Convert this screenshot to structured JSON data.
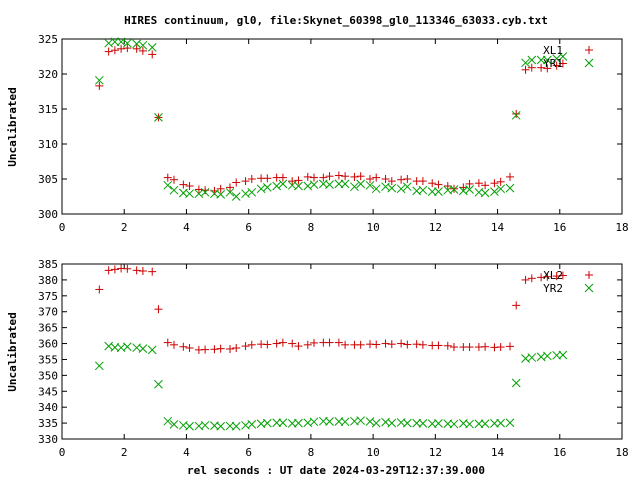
{
  "title": "HIRES continuum, gl0, file:Skynet_60398_gl0_113346_63033.cyb.txt",
  "colors": {
    "plus": "#cc0000",
    "cross": "#00a000"
  },
  "chart_data": [
    {
      "type": "scatter",
      "ylabel": "Uncalibrated",
      "xlabel": "",
      "xlim": [
        0,
        18
      ],
      "ylim": [
        300,
        325
      ],
      "x_ticks": [
        0,
        2,
        4,
        6,
        8,
        10,
        12,
        14,
        16,
        18
      ],
      "y_ticks": [
        300,
        305,
        310,
        315,
        320,
        325
      ],
      "grid": false,
      "legend": "top-right",
      "series": [
        {
          "name": "XL1",
          "marker": "plus",
          "x": [
            1.2,
            1.5,
            1.7,
            1.9,
            2.1,
            2.4,
            2.6,
            2.9,
            3.1,
            3.4,
            3.6,
            3.9,
            4.1,
            4.4,
            4.6,
            4.9,
            5.1,
            5.4,
            5.6,
            5.9,
            6.1,
            6.4,
            6.6,
            6.9,
            7.1,
            7.4,
            7.6,
            7.9,
            8.1,
            8.4,
            8.6,
            8.9,
            9.1,
            9.4,
            9.6,
            9.9,
            10.1,
            10.4,
            10.6,
            10.9,
            11.1,
            11.4,
            11.6,
            11.9,
            12.1,
            12.4,
            12.6,
            12.9,
            13.1,
            13.4,
            13.6,
            13.9,
            14.1,
            14.4,
            14.6,
            14.9,
            15.1,
            15.4,
            15.6,
            15.9,
            16.1
          ],
          "y": [
            318.3,
            323.2,
            323.4,
            323.6,
            323.7,
            323.6,
            323.3,
            322.8,
            313.8,
            305.2,
            304.9,
            304.2,
            304.0,
            303.5,
            303.4,
            303.3,
            303.6,
            303.8,
            304.5,
            304.7,
            305.0,
            305.1,
            305.1,
            305.2,
            305.2,
            304.7,
            304.8,
            305.3,
            305.2,
            305.2,
            305.4,
            305.5,
            305.4,
            305.3,
            305.4,
            305.0,
            305.2,
            305.0,
            304.7,
            304.9,
            305.0,
            304.7,
            304.7,
            304.4,
            304.2,
            304.0,
            303.6,
            303.8,
            304.3,
            304.4,
            304.1,
            304.4,
            304.6,
            305.3,
            314.3,
            320.6,
            320.9,
            320.9,
            320.8,
            321.2,
            321.5
          ]
        },
        {
          "name": "YR1",
          "marker": "cross",
          "x": [
            1.2,
            1.5,
            1.7,
            1.9,
            2.1,
            2.4,
            2.6,
            2.9,
            3.1,
            3.4,
            3.6,
            3.9,
            4.1,
            4.4,
            4.6,
            4.9,
            5.1,
            5.4,
            5.6,
            5.9,
            6.1,
            6.4,
            6.6,
            6.9,
            7.1,
            7.4,
            7.6,
            7.9,
            8.1,
            8.4,
            8.6,
            8.9,
            9.1,
            9.4,
            9.6,
            9.9,
            10.1,
            10.4,
            10.6,
            10.9,
            11.1,
            11.4,
            11.6,
            11.9,
            12.1,
            12.4,
            12.6,
            12.9,
            13.1,
            13.4,
            13.6,
            13.9,
            14.1,
            14.4,
            14.6,
            14.9,
            15.1,
            15.4,
            15.6,
            15.9,
            16.1
          ],
          "y": [
            319.1,
            324.4,
            324.6,
            324.6,
            324.4,
            324.3,
            324.1,
            323.8,
            313.8,
            304.1,
            303.4,
            303.0,
            302.9,
            302.9,
            303.1,
            302.9,
            302.8,
            303.1,
            302.5,
            302.9,
            303.1,
            303.6,
            303.8,
            304.0,
            304.3,
            304.1,
            304.0,
            304.0,
            304.2,
            304.3,
            304.2,
            304.3,
            304.3,
            303.9,
            304.3,
            304.1,
            303.6,
            303.9,
            303.7,
            303.6,
            303.9,
            303.3,
            303.4,
            303.2,
            303.2,
            303.4,
            303.5,
            303.3,
            303.5,
            303.1,
            303.0,
            303.2,
            303.6,
            303.7,
            314.1,
            321.6,
            322.0,
            322.0,
            322.0,
            322.2,
            322.5
          ]
        }
      ]
    },
    {
      "type": "scatter",
      "ylabel": "Uncalibrated",
      "xlabel": "rel seconds : UT date 2024-03-29T12:37:39.000",
      "xlim": [
        0,
        18
      ],
      "ylim": [
        330,
        385
      ],
      "x_ticks": [
        0,
        2,
        4,
        6,
        8,
        10,
        12,
        14,
        16,
        18
      ],
      "y_ticks": [
        330,
        335,
        340,
        345,
        350,
        355,
        360,
        365,
        370,
        375,
        380,
        385
      ],
      "grid": false,
      "legend": "top-right",
      "series": [
        {
          "name": "XL2",
          "marker": "plus",
          "x": [
            1.2,
            1.5,
            1.7,
            1.9,
            2.1,
            2.4,
            2.6,
            2.9,
            3.1,
            3.4,
            3.6,
            3.9,
            4.1,
            4.4,
            4.6,
            4.9,
            5.1,
            5.4,
            5.6,
            5.9,
            6.1,
            6.4,
            6.6,
            6.9,
            7.1,
            7.4,
            7.6,
            7.9,
            8.1,
            8.4,
            8.6,
            8.9,
            9.1,
            9.4,
            9.6,
            9.9,
            10.1,
            10.4,
            10.6,
            10.9,
            11.1,
            11.4,
            11.6,
            11.9,
            12.1,
            12.4,
            12.6,
            12.9,
            13.1,
            13.4,
            13.6,
            13.9,
            14.1,
            14.4,
            14.6,
            14.9,
            15.1,
            15.4,
            15.6,
            15.9,
            16.1
          ],
          "y": [
            377.0,
            383.0,
            383.3,
            383.6,
            383.5,
            383.0,
            382.8,
            382.6,
            370.8,
            360.3,
            359.6,
            359.0,
            358.6,
            358.0,
            358.1,
            358.2,
            358.4,
            358.3,
            358.6,
            359.2,
            359.6,
            359.8,
            359.7,
            360.0,
            360.3,
            360.0,
            359.2,
            359.6,
            360.2,
            360.3,
            360.3,
            360.3,
            359.6,
            359.6,
            359.6,
            359.8,
            359.7,
            360.0,
            359.8,
            360.0,
            359.7,
            359.8,
            359.6,
            359.4,
            359.4,
            359.3,
            358.9,
            358.9,
            358.9,
            358.9,
            359.0,
            358.8,
            358.9,
            359.1,
            372.0,
            380.0,
            380.5,
            380.8,
            381.0,
            381.2,
            381.4
          ]
        },
        {
          "name": "YR2",
          "marker": "cross",
          "x": [
            1.2,
            1.5,
            1.7,
            1.9,
            2.1,
            2.4,
            2.6,
            2.9,
            3.1,
            3.4,
            3.6,
            3.9,
            4.1,
            4.4,
            4.6,
            4.9,
            5.1,
            5.4,
            5.6,
            5.9,
            6.1,
            6.4,
            6.6,
            6.9,
            7.1,
            7.4,
            7.6,
            7.9,
            8.1,
            8.4,
            8.6,
            8.9,
            9.1,
            9.4,
            9.6,
            9.9,
            10.1,
            10.4,
            10.6,
            10.9,
            11.1,
            11.4,
            11.6,
            11.9,
            12.1,
            12.4,
            12.6,
            12.9,
            13.1,
            13.4,
            13.6,
            13.9,
            14.1,
            14.4,
            14.6,
            14.9,
            15.1,
            15.4,
            15.6,
            15.9,
            16.1
          ],
          "y": [
            353.0,
            359.2,
            358.8,
            358.7,
            359.0,
            358.7,
            358.4,
            358.0,
            347.2,
            335.6,
            334.6,
            334.3,
            334.0,
            334.1,
            334.3,
            334.2,
            334.0,
            334.1,
            334.0,
            334.3,
            334.6,
            334.8,
            335.0,
            335.1,
            335.1,
            334.9,
            335.0,
            335.1,
            335.4,
            335.6,
            335.5,
            335.5,
            335.4,
            335.6,
            335.8,
            335.5,
            335.0,
            335.3,
            335.0,
            335.2,
            335.0,
            335.0,
            334.9,
            334.8,
            334.9,
            334.8,
            334.7,
            334.9,
            334.7,
            334.8,
            334.8,
            334.9,
            335.0,
            335.1,
            347.6,
            355.3,
            355.6,
            355.8,
            356.1,
            356.3,
            356.4
          ]
        }
      ]
    }
  ]
}
